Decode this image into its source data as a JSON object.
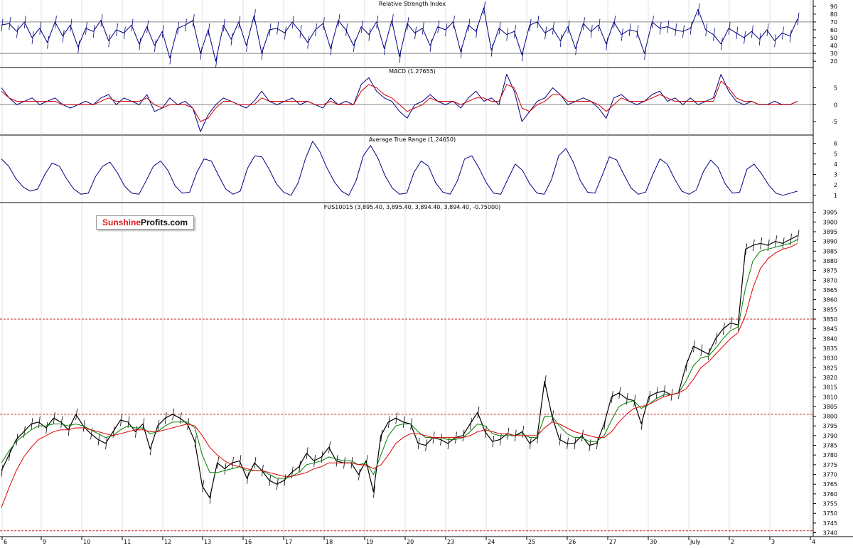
{
  "chart_data": [
    {
      "type": "line",
      "title": "Relative Strength Index",
      "yticks": [
        90,
        80,
        70,
        60,
        50,
        40,
        30,
        20
      ],
      "ylim": [
        12,
        98
      ],
      "reference_lines": [
        70,
        30
      ],
      "series": [
        {
          "color": "#000080",
          "values": [
            66,
            68,
            58,
            70,
            50,
            62,
            44,
            70,
            52,
            66,
            38,
            62,
            58,
            72,
            46,
            60,
            56,
            66,
            42,
            64,
            40,
            58,
            24,
            62,
            66,
            72,
            30,
            60,
            20,
            66,
            48,
            70,
            40,
            78,
            30,
            60,
            62,
            56,
            70,
            58,
            44,
            60,
            68,
            36,
            72,
            60,
            40,
            64,
            54,
            70,
            36,
            72,
            26,
            68,
            56,
            62,
            40,
            64,
            60,
            70,
            32,
            66,
            58,
            88,
            34,
            62,
            54,
            58,
            28,
            66,
            70,
            56,
            62,
            46,
            64,
            36,
            68,
            58,
            66,
            42,
            70,
            54,
            60,
            58,
            30,
            70,
            62,
            64,
            60,
            58,
            62,
            86,
            60,
            54,
            42,
            62,
            56,
            50,
            58,
            48,
            60,
            46,
            56,
            52,
            74
          ]
        }
      ]
    },
    {
      "type": "line",
      "title": "MACD (1.27655)",
      "yticks": [
        5,
        0,
        -5
      ],
      "ylim": [
        -9,
        11
      ],
      "reference_lines": [
        0
      ],
      "series": [
        {
          "color": "#000080",
          "values": [
            5,
            2,
            0,
            1,
            2,
            0,
            1,
            2,
            0,
            -1,
            0,
            1,
            0,
            2,
            3,
            0,
            2,
            1,
            0,
            3,
            -2,
            -1,
            2,
            0,
            1,
            -1,
            -8,
            -3,
            0,
            2,
            1,
            0,
            -1,
            1,
            4,
            1,
            0,
            1,
            2,
            0,
            1,
            0,
            -1,
            2,
            0,
            1,
            0,
            6,
            8,
            4,
            2,
            1,
            -2,
            -4,
            0,
            1,
            3,
            1,
            0,
            1,
            -1,
            2,
            4,
            1,
            2,
            0,
            9,
            4,
            -5,
            -2,
            1,
            2,
            5,
            3,
            0,
            1,
            2,
            1,
            -1,
            -4,
            2,
            3,
            1,
            0,
            1,
            3,
            4,
            1,
            2,
            0,
            2,
            0,
            1,
            2,
            9,
            4,
            1,
            0,
            1,
            0,
            0,
            1,
            0,
            0,
            1
          ]
        },
        {
          "color": "#cc0000",
          "values": [
            4,
            2,
            1,
            1,
            1,
            1,
            1,
            1,
            0,
            0,
            0,
            0,
            0,
            1,
            2,
            1,
            1,
            1,
            1,
            2,
            0,
            -1,
            0,
            0,
            0,
            -1,
            -5,
            -4,
            -1,
            1,
            1,
            0,
            0,
            0,
            2,
            1,
            1,
            1,
            1,
            1,
            1,
            0,
            0,
            1,
            0,
            0,
            0,
            4,
            6,
            5,
            3,
            2,
            0,
            -2,
            -1,
            0,
            2,
            1,
            1,
            1,
            0,
            1,
            2,
            2,
            1,
            1,
            6,
            5,
            -1,
            -2,
            0,
            1,
            3,
            3,
            1,
            1,
            1,
            1,
            0,
            -2,
            0,
            2,
            1,
            1,
            1,
            2,
            3,
            2,
            1,
            1,
            1,
            1,
            1,
            1,
            7,
            5,
            2,
            1,
            1,
            0,
            0,
            0,
            0,
            0,
            1
          ]
        }
      ]
    },
    {
      "type": "line",
      "title": "Average True Range (1.24650)",
      "yticks": [
        6,
        5,
        4,
        3,
        2,
        1
      ],
      "ylim": [
        0.3,
        6.8
      ],
      "series": [
        {
          "color": "#000080",
          "values": [
            4.5,
            3.8,
            2.6,
            1.8,
            1.4,
            1.6,
            3,
            4.1,
            3.8,
            2.6,
            1.6,
            1.1,
            1.2,
            2.8,
            3.8,
            4.2,
            3.2,
            1.9,
            1.2,
            1.1,
            2.4,
            3.8,
            4.3,
            3.4,
            1.9,
            1.2,
            1.3,
            3.2,
            4.5,
            4.3,
            2.9,
            1.6,
            1.1,
            1.4,
            3.6,
            4.8,
            4.7,
            3.5,
            2.1,
            1.3,
            1.0,
            2.2,
            4.5,
            6.2,
            5.2,
            3.6,
            2.3,
            1.4,
            1.0,
            2.4,
            4.8,
            5.8,
            4.6,
            2.9,
            1.7,
            1.1,
            1.2,
            3.2,
            4.3,
            3.8,
            2.2,
            1.3,
            1.1,
            2.4,
            4.5,
            4.8,
            3.6,
            2.2,
            1.2,
            1.1,
            2.6,
            4.0,
            3.4,
            2.1,
            1.2,
            1.1,
            2.5,
            4.8,
            5.5,
            4.2,
            2.4,
            1.3,
            1.2,
            2.9,
            4.7,
            4.4,
            3.0,
            1.7,
            1.1,
            1.3,
            3.0,
            4.5,
            4.0,
            2.6,
            1.4,
            1.1,
            1.5,
            3.3,
            4.4,
            3.7,
            2.1,
            1.2,
            1.3,
            3.5,
            4.0,
            3.1,
            2.0,
            1.2,
            1.0,
            1.2,
            1.4
          ]
        }
      ]
    },
    {
      "type": "line",
      "title": "FUS10015 (3,895.40, 3,895.40, 3,894.40, 3,894.40, -0.75000)",
      "ylim": [
        3738,
        3910
      ],
      "yticks": [
        3905,
        3900,
        3895,
        3890,
        3885,
        3880,
        3875,
        3870,
        3865,
        3860,
        3855,
        3850,
        3845,
        3840,
        3835,
        3830,
        3825,
        3820,
        3815,
        3810,
        3805,
        3800,
        3795,
        3790,
        3785,
        3780,
        3775,
        3770,
        3765,
        3760,
        3755,
        3750,
        3745,
        3740
      ],
      "reference_lines": [
        3850,
        3801,
        3741
      ],
      "x_ticks": [
        "6",
        "9",
        "10",
        "11",
        "12",
        "13",
        "16",
        "17",
        "18",
        "19",
        "20",
        "23",
        "24",
        "25",
        "26",
        "27",
        "30",
        "July",
        "2",
        "3",
        "4"
      ],
      "series": [
        {
          "name": "",
          "color": "#000000",
          "values": [
            3772,
            3780,
            3788,
            3792,
            3796,
            3797,
            3794,
            3799,
            3797,
            3793,
            3801,
            3795,
            3791,
            3788,
            3786,
            3792,
            3798,
            3797,
            3792,
            3796,
            3783,
            3795,
            3799,
            3801,
            3799,
            3796,
            3787,
            3764,
            3758,
            3776,
            3773,
            3776,
            3777,
            3768,
            3776,
            3772,
            3767,
            3765,
            3767,
            3771,
            3774,
            3781,
            3777,
            3779,
            3784,
            3777,
            3776,
            3776,
            3770,
            3777,
            3761,
            3790,
            3797,
            3799,
            3797,
            3796,
            3786,
            3785,
            3789,
            3788,
            3786,
            3789,
            3790,
            3796,
            3802,
            3792,
            3787,
            3788,
            3791,
            3790,
            3792,
            3786,
            3789,
            3818,
            3800,
            3788,
            3786,
            3786,
            3790,
            3785,
            3786,
            3796,
            3810,
            3812,
            3809,
            3808,
            3796,
            3810,
            3812,
            3813,
            3811,
            3812,
            3826,
            3836,
            3834,
            3832,
            3840,
            3845,
            3848,
            3847,
            3886,
            3888,
            3889,
            3888,
            3890,
            3889,
            3891,
            3893
          ]
        },
        {
          "name": "",
          "color": "#008000",
          "values": [
            3776,
            3782,
            3787,
            3790,
            3793,
            3795,
            3795,
            3796,
            3796,
            3795,
            3796,
            3795,
            3793,
            3791,
            3789,
            3790,
            3793,
            3795,
            3794,
            3794,
            3791,
            3792,
            3795,
            3797,
            3797,
            3797,
            3794,
            3780,
            3771,
            3771,
            3772,
            3773,
            3774,
            3772,
            3772,
            3772,
            3770,
            3768,
            3768,
            3769,
            3771,
            3775,
            3776,
            3777,
            3779,
            3778,
            3777,
            3777,
            3775,
            3776,
            3770,
            3780,
            3790,
            3795,
            3796,
            3796,
            3792,
            3789,
            3789,
            3789,
            3788,
            3788,
            3789,
            3792,
            3796,
            3795,
            3791,
            3790,
            3790,
            3790,
            3791,
            3789,
            3789,
            3800,
            3800,
            3795,
            3791,
            3789,
            3789,
            3787,
            3787,
            3790,
            3798,
            3805,
            3807,
            3808,
            3804,
            3806,
            3809,
            3811,
            3811,
            3812,
            3818,
            3826,
            3830,
            3831,
            3835,
            3840,
            3844,
            3846,
            3866,
            3880,
            3885,
            3886,
            3887,
            3888,
            3889,
            3891
          ]
        },
        {
          "name": "",
          "color": "#e00000",
          "values": [
            3753,
            3763,
            3772,
            3779,
            3784,
            3788,
            3790,
            3792,
            3793,
            3793,
            3794,
            3794,
            3793,
            3792,
            3791,
            3790,
            3791,
            3792,
            3793,
            3793,
            3792,
            3792,
            3793,
            3794,
            3795,
            3796,
            3795,
            3790,
            3784,
            3780,
            3777,
            3775,
            3774,
            3773,
            3772,
            3772,
            3771,
            3770,
            3769,
            3769,
            3770,
            3771,
            3773,
            3774,
            3776,
            3776,
            3776,
            3776,
            3775,
            3775,
            3773,
            3775,
            3780,
            3786,
            3789,
            3791,
            3791,
            3790,
            3789,
            3789,
            3789,
            3789,
            3789,
            3790,
            3792,
            3793,
            3792,
            3791,
            3791,
            3790,
            3790,
            3790,
            3790,
            3794,
            3797,
            3796,
            3794,
            3792,
            3791,
            3790,
            3789,
            3789,
            3792,
            3797,
            3801,
            3804,
            3805,
            3806,
            3808,
            3810,
            3811,
            3812,
            3814,
            3819,
            3825,
            3828,
            3832,
            3836,
            3840,
            3843,
            3852,
            3866,
            3876,
            3881,
            3884,
            3886,
            3887,
            3889
          ]
        }
      ]
    }
  ],
  "watermark": {
    "part1": "Sunshine",
    "part2": "Profits.com"
  },
  "colors": {
    "grid": "#cccccc",
    "ref_line": "#cc2222",
    "ref_line_indicator": "#888888",
    "border": "#000000"
  }
}
